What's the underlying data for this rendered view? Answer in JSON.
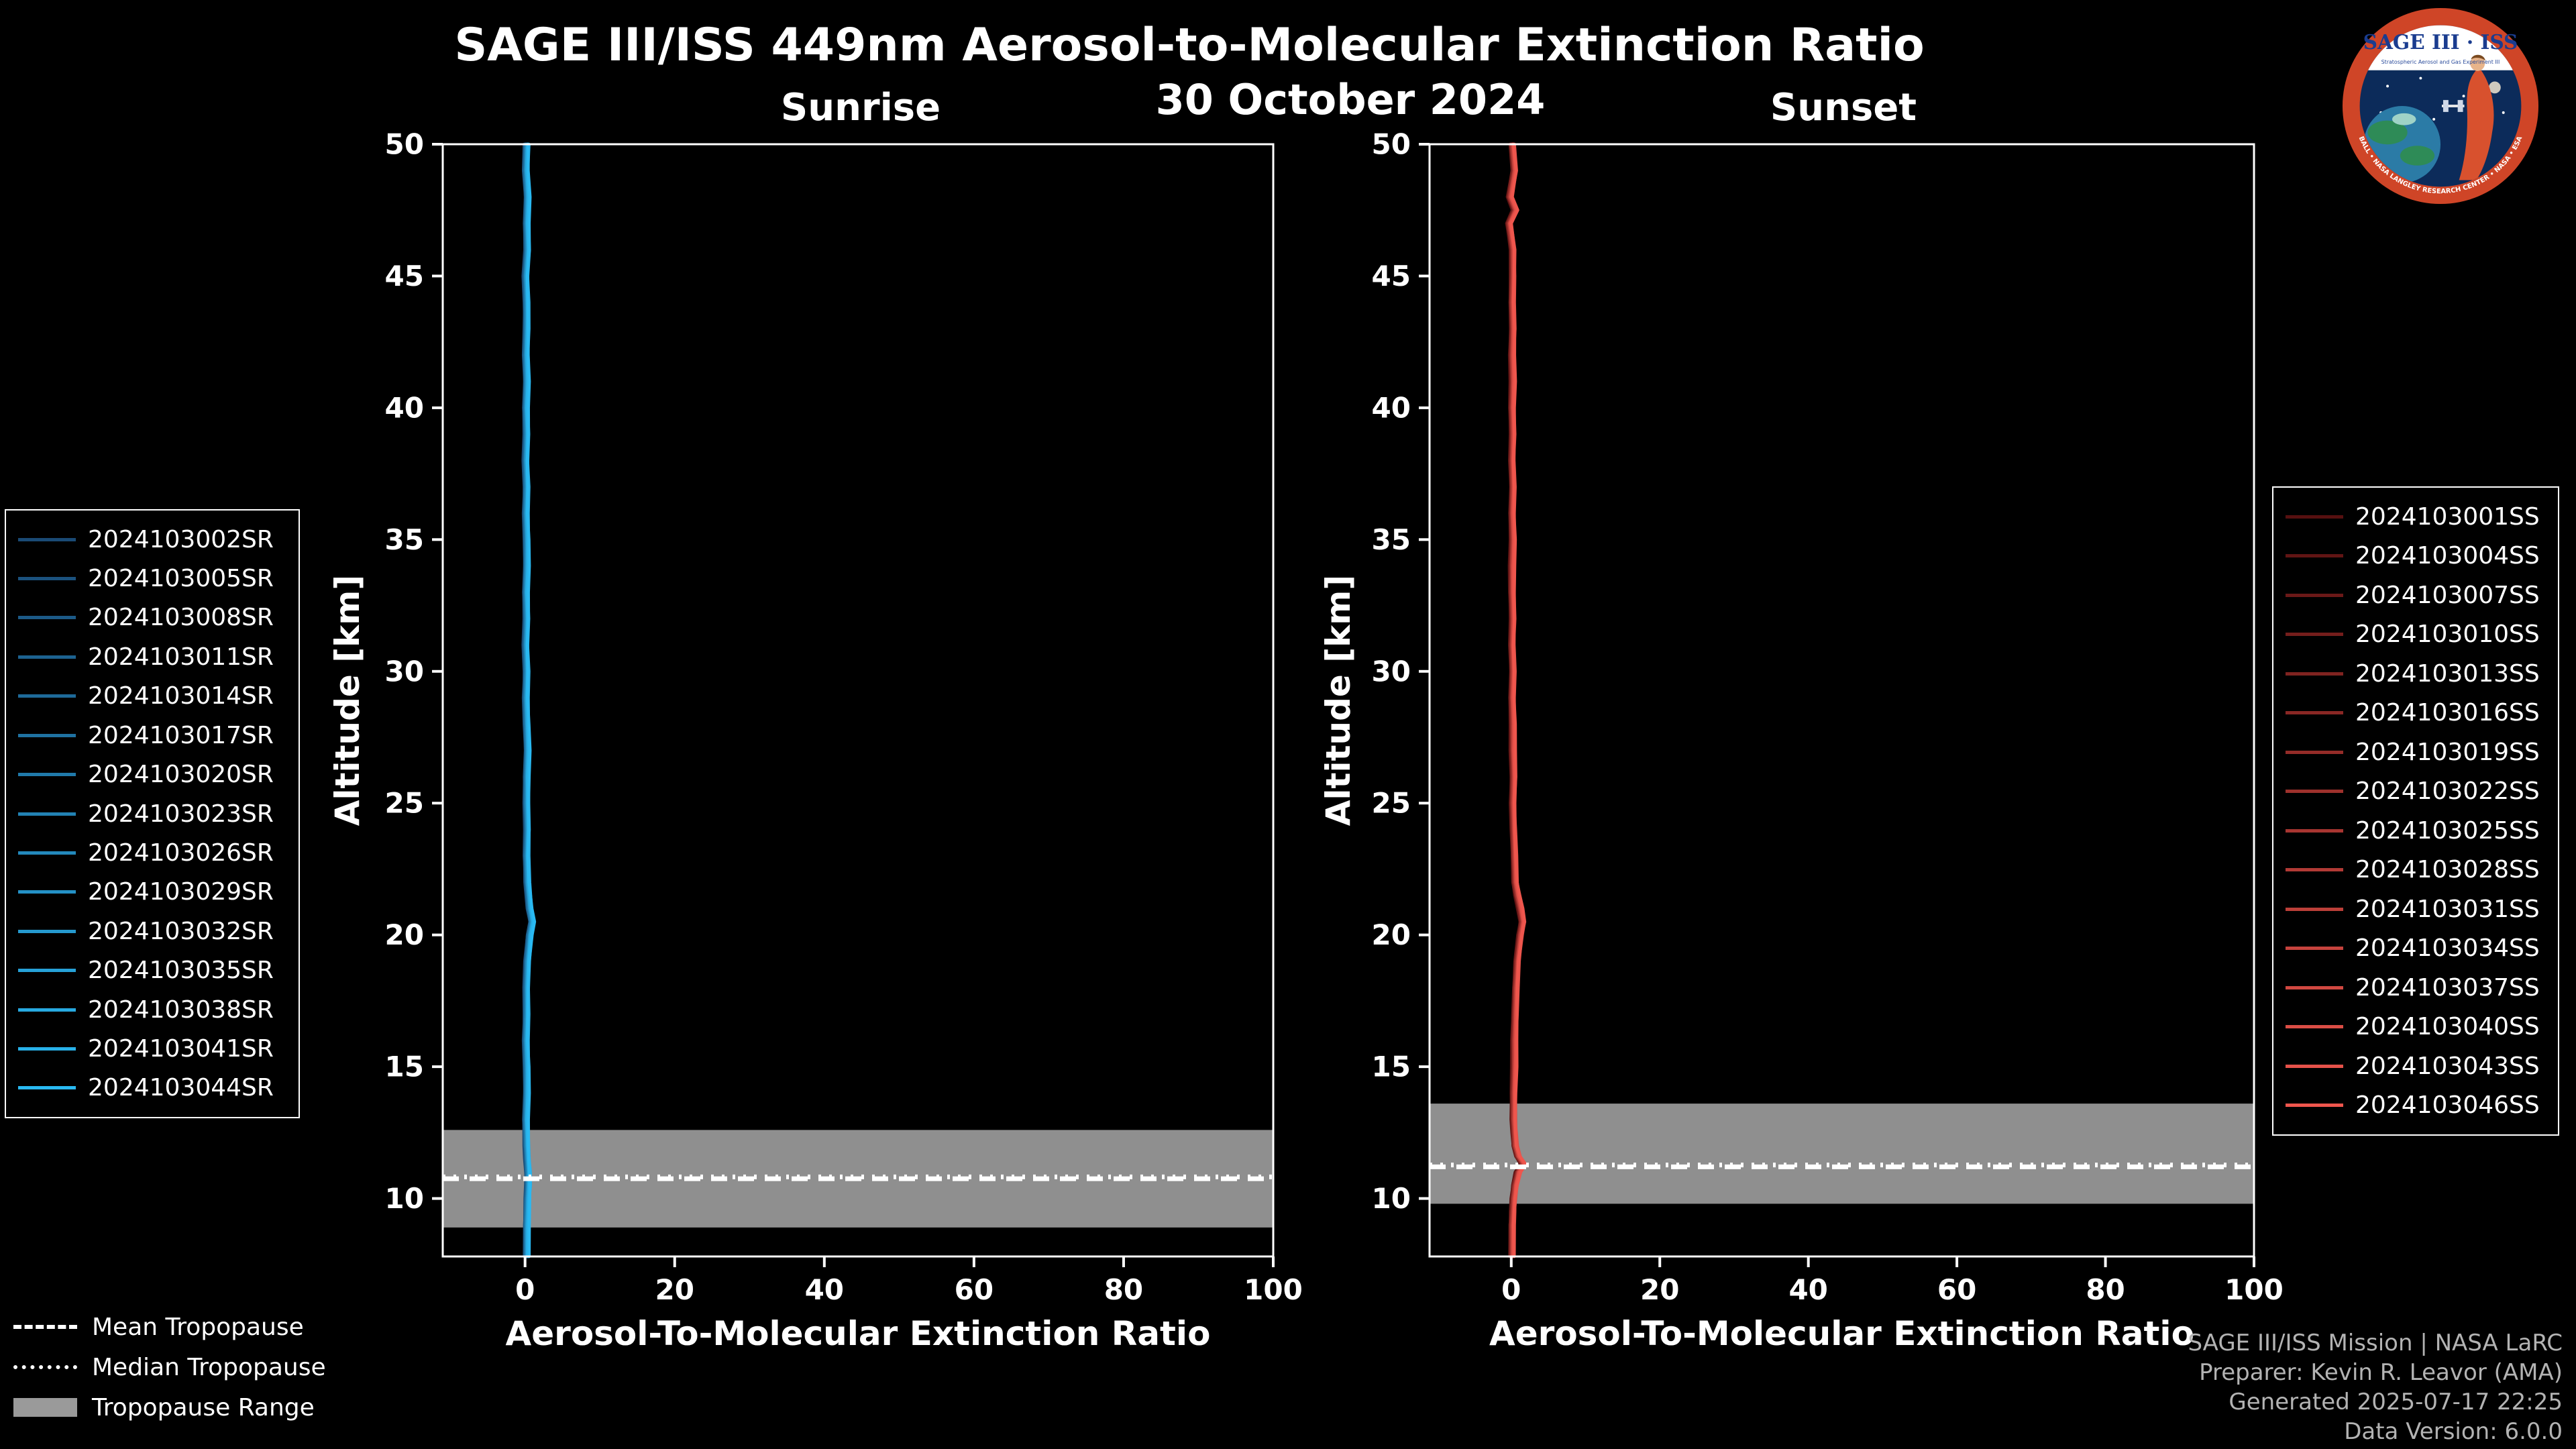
{
  "header": {
    "title": "SAGE III/ISS 449nm Aerosol-to-Molecular Extinction Ratio",
    "date": "30 October 2024"
  },
  "footer": {
    "lines": [
      "SAGE III/ISS Mission | NASA LaRC",
      "Preparer: Kevin R. Leavor (AMA)",
      "Generated 2025-07-17 22:25",
      "Data Version: 6.0.0"
    ]
  },
  "logo": {
    "title": "SAGE III · ISS",
    "subtitle": "Stratospheric Aerosol and Gas Experiment III",
    "ring_text": "BALL • NASA LANGLEY RESEARCH CENTER • NASA • ESA",
    "colors": {
      "ring": "#cf4527",
      "inner": "#0c2b5a",
      "band": "#ffffff",
      "title_text": "#1a3c8f"
    }
  },
  "tropopause_legend": {
    "items": [
      {
        "label": "Mean Tropopause",
        "style": "dashed"
      },
      {
        "label": "Median Tropopause",
        "style": "dotted"
      },
      {
        "label": "Tropopause Range",
        "style": "band"
      }
    ]
  },
  "chart_data": [
    {
      "type": "line",
      "panel": "sunrise",
      "title": "Sunrise",
      "xlabel": "Aerosol-To-Molecular Extinction Ratio",
      "ylabel": "Altitude [km]",
      "xlim": [
        -11,
        100
      ],
      "ylim": [
        7.8,
        50
      ],
      "xticks": [
        0,
        20,
        40,
        60,
        80,
        100
      ],
      "yticks": [
        10,
        15,
        20,
        25,
        30,
        35,
        40,
        45,
        50
      ],
      "grid": false,
      "line_color_start": "#1a4a75",
      "line_color_end": "#29b9f2",
      "tropopause": {
        "mean_km": 10.75,
        "median_km": 10.82,
        "range_km": [
          8.9,
          12.6
        ],
        "band_color": "#8f8f8f"
      },
      "legend": [
        "2024103002SR",
        "2024103005SR",
        "2024103008SR",
        "2024103011SR",
        "2024103014SR",
        "2024103017SR",
        "2024103020SR",
        "2024103023SR",
        "2024103026SR",
        "2024103029SR",
        "2024103032SR",
        "2024103035SR",
        "2024103038SR",
        "2024103041SR",
        "2024103044SR"
      ],
      "profile": {
        "altitude_km": [
          7.8,
          9,
          10,
          10.5,
          11,
          11.5,
          12,
          13,
          14,
          15,
          16,
          17,
          18,
          19,
          20,
          20.5,
          21,
          22,
          23,
          24,
          25,
          26,
          27,
          28,
          29,
          30,
          31,
          32,
          33,
          34,
          35,
          36,
          37,
          38,
          39,
          40,
          41,
          42,
          43,
          44,
          45,
          46,
          47,
          48,
          49,
          50
        ],
        "ratio": [
          0.2,
          0.2,
          0.3,
          0.4,
          0.4,
          0.3,
          0.2,
          0.1,
          0.2,
          0.2,
          0.1,
          0.2,
          0.2,
          0.3,
          0.6,
          0.9,
          0.6,
          0.3,
          0.2,
          0.3,
          0.2,
          0.2,
          0.3,
          0.2,
          0.1,
          0.2,
          0.1,
          0.2,
          0.1,
          0.2,
          0.2,
          0.1,
          0.2,
          0.1,
          0.2,
          0.1,
          0.2,
          0.1,
          0.2,
          0.2,
          0.1,
          0.3,
          0.2,
          0.3,
          0.1,
          0.2
        ]
      }
    },
    {
      "type": "line",
      "panel": "sunset",
      "title": "Sunset",
      "xlabel": "Aerosol-To-Molecular Extinction Ratio",
      "ylabel": "Altitude [km]",
      "xlim": [
        -11,
        100
      ],
      "ylim": [
        7.8,
        50
      ],
      "xticks": [
        0,
        20,
        40,
        60,
        80,
        100
      ],
      "yticks": [
        10,
        15,
        20,
        25,
        30,
        35,
        40,
        45,
        50
      ],
      "grid": false,
      "line_color_start": "#571010",
      "line_color_end": "#ef564d",
      "tropopause": {
        "mean_km": 11.2,
        "median_km": 11.27,
        "range_km": [
          9.8,
          13.6
        ],
        "band_color": "#8f8f8f"
      },
      "legend": [
        "2024103001SS",
        "2024103004SS",
        "2024103007SS",
        "2024103010SS",
        "2024103013SS",
        "2024103016SS",
        "2024103019SS",
        "2024103022SS",
        "2024103025SS",
        "2024103028SS",
        "2024103031SS",
        "2024103034SS",
        "2024103037SS",
        "2024103040SS",
        "2024103043SS",
        "2024103046SS"
      ],
      "profile": {
        "altitude_km": [
          7.8,
          9,
          9.5,
          10,
          10.5,
          11,
          11.3,
          11.6,
          12,
          12.5,
          13,
          14,
          15,
          16,
          17,
          18,
          19,
          20,
          20.5,
          21,
          21.5,
          22,
          23,
          24,
          25,
          26,
          27,
          28,
          29,
          30,
          31,
          32,
          33,
          34,
          35,
          36,
          37,
          38,
          39,
          40,
          41,
          42,
          43,
          44,
          45,
          46,
          47,
          47.5,
          48,
          49,
          50
        ],
        "ratio": [
          0.1,
          0.1,
          0.2,
          0.3,
          0.5,
          0.9,
          1.6,
          0.9,
          0.5,
          0.4,
          0.3,
          0.3,
          0.4,
          0.4,
          0.5,
          0.6,
          0.8,
          1.2,
          1.5,
          1.2,
          0.8,
          0.5,
          0.4,
          0.3,
          0.2,
          0.3,
          0.2,
          0.2,
          0.1,
          0.2,
          0.1,
          0.2,
          0.1,
          0.1,
          0.2,
          0.1,
          0.2,
          0.1,
          0.2,
          0.1,
          0.2,
          0.1,
          0.2,
          0.1,
          0.2,
          0.2,
          -0.3,
          0.5,
          -0.2,
          0.4,
          0.1
        ]
      }
    }
  ]
}
